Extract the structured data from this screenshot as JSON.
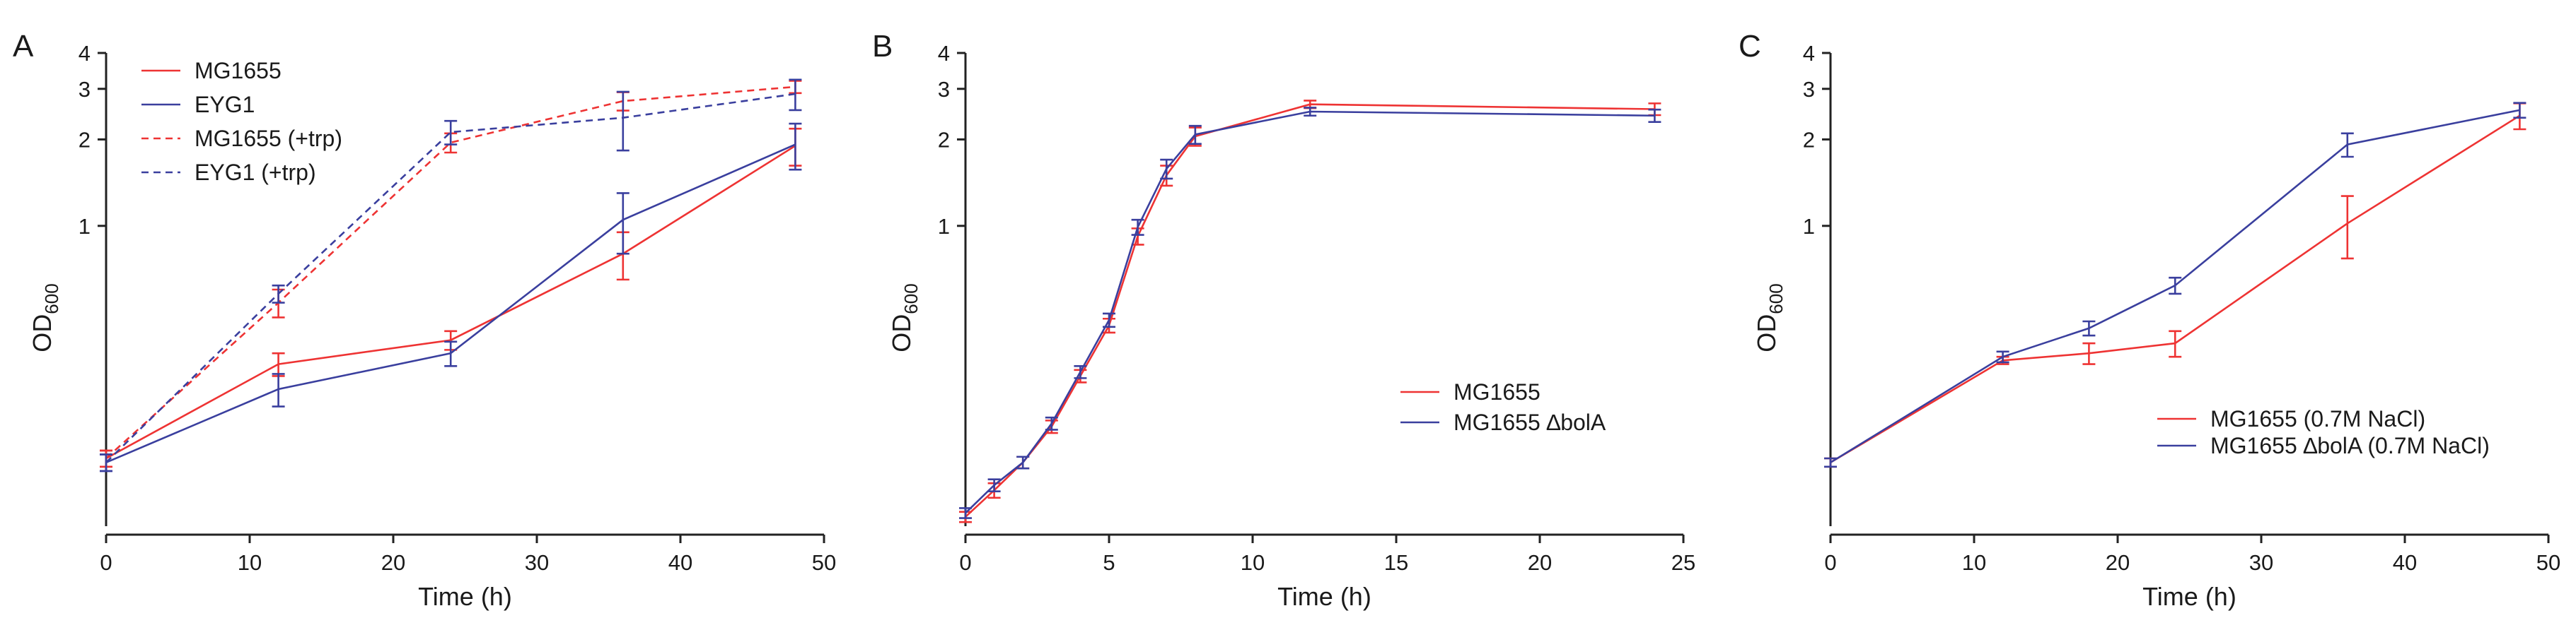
{
  "chart_data": [
    {
      "panel_label": "A",
      "type": "line",
      "xlabel": "Time (h)",
      "ylabel_main": "OD",
      "ylabel_sub": "600",
      "xlim": [
        0,
        50
      ],
      "xticks": [
        0,
        10,
        20,
        30,
        40,
        50
      ],
      "xtick_labels": [
        "0",
        "10",
        "20",
        "30",
        "40",
        "50"
      ],
      "yscale": "log",
      "ylim": [
        0.09,
        4
      ],
      "yticks": [
        1,
        2,
        3,
        4
      ],
      "ytick_labels": [
        "1",
        "2",
        "3",
        "4"
      ],
      "legend_position": "top-left",
      "series": [
        {
          "name": "MG1655",
          "color": "#ee3333",
          "dash": "solid",
          "x": [
            0,
            12,
            24,
            36,
            48
          ],
          "y": [
            0.155,
            0.33,
            0.4,
            0.8,
            1.9
          ],
          "err": [
            0.01,
            0.03,
            0.03,
            0.15,
            0.28
          ]
        },
        {
          "name": "EYG1",
          "color": "#3a3f9e",
          "dash": "solid",
          "x": [
            0,
            12,
            24,
            36,
            48
          ],
          "y": [
            0.15,
            0.27,
            0.36,
            1.05,
            1.92
          ],
          "err": [
            0.01,
            0.035,
            0.035,
            0.25,
            0.35
          ]
        },
        {
          "name": "MG1655 (+trp)",
          "color": "#ee3333",
          "dash": "dashed",
          "x": [
            0,
            12,
            24,
            36,
            48
          ],
          "y": [
            0.155,
            0.54,
            1.95,
            2.72,
            3.05
          ],
          "err": [
            0.01,
            0.06,
            0.15,
            0.2,
            0.15
          ]
        },
        {
          "name": "EYG1 (+trp)",
          "color": "#3a3f9e",
          "dash": "dashed",
          "x": [
            0,
            12,
            24,
            36,
            48
          ],
          "y": [
            0.15,
            0.58,
            2.12,
            2.38,
            2.88
          ],
          "err": [
            0.01,
            0.04,
            0.2,
            0.55,
            0.35
          ]
        }
      ]
    },
    {
      "panel_label": "B",
      "type": "line",
      "xlabel": "Time (h)",
      "ylabel_main": "OD",
      "ylabel_sub": "600",
      "xlim": [
        0,
        25
      ],
      "xticks": [
        0,
        5,
        10,
        15,
        20,
        25
      ],
      "xtick_labels": [
        "0",
        "5",
        "10",
        "15",
        "20",
        "25"
      ],
      "yscale": "log",
      "ylim": [
        0.09,
        4
      ],
      "yticks": [
        1,
        2,
        3,
        4
      ],
      "ytick_labels": [
        "1",
        "2",
        "3",
        "4"
      ],
      "legend_position": "center-right",
      "series": [
        {
          "name": "MG1655",
          "color": "#ee3333",
          "dash": "solid",
          "x": [
            0,
            1,
            2,
            3,
            4,
            5,
            6,
            7,
            8,
            12,
            24
          ],
          "y": [
            0.097,
            0.12,
            0.15,
            0.2,
            0.3,
            0.45,
            0.92,
            1.5,
            2.05,
            2.65,
            2.55
          ],
          "err": [
            0.004,
            0.007,
            0.007,
            0.01,
            0.015,
            0.025,
            0.06,
            0.12,
            0.15,
            0.08,
            0.12
          ]
        },
        {
          "name": "MG1655 ∆bolA",
          "color": "#3a3f9e",
          "dash": "solid",
          "x": [
            0,
            1,
            2,
            3,
            4,
            5,
            6,
            7,
            8,
            12,
            24
          ],
          "y": [
            0.1,
            0.125,
            0.15,
            0.205,
            0.31,
            0.47,
            0.99,
            1.58,
            2.08,
            2.5,
            2.42
          ],
          "err": [
            0.004,
            0.006,
            0.007,
            0.01,
            0.015,
            0.025,
            0.06,
            0.12,
            0.15,
            0.08,
            0.12
          ]
        }
      ]
    },
    {
      "panel_label": "C",
      "type": "line",
      "xlabel": "Time (h)",
      "ylabel_main": "OD",
      "ylabel_sub": "600",
      "xlim": [
        0,
        50
      ],
      "xticks": [
        0,
        10,
        20,
        30,
        40,
        50
      ],
      "xtick_labels": [
        "0",
        "10",
        "20",
        "30",
        "40",
        "50"
      ],
      "yscale": "log",
      "ylim": [
        0.09,
        4
      ],
      "yticks": [
        1,
        2,
        3,
        4
      ],
      "ytick_labels": [
        "1",
        "2",
        "3",
        "4"
      ],
      "legend_position": "bottom-right",
      "series": [
        {
          "name": "MG1655 (0.7M NaCl)",
          "color": "#ee3333",
          "dash": "solid",
          "x": [
            0,
            12,
            18,
            24,
            36,
            48
          ],
          "y": [
            0.15,
            0.34,
            0.36,
            0.39,
            1.02,
            2.42
          ],
          "err": [
            0.005,
            0.01,
            0.03,
            0.04,
            0.25,
            0.25
          ]
        },
        {
          "name": "MG1655 ∆bolA (0.7M NaCl)",
          "color": "#3a3f9e",
          "dash": "solid",
          "x": [
            0,
            12,
            18,
            24,
            36,
            48
          ],
          "y": [
            0.15,
            0.35,
            0.44,
            0.62,
            1.92,
            2.53
          ],
          "err": [
            0.005,
            0.015,
            0.025,
            0.04,
            0.18,
            0.15
          ]
        }
      ]
    }
  ]
}
